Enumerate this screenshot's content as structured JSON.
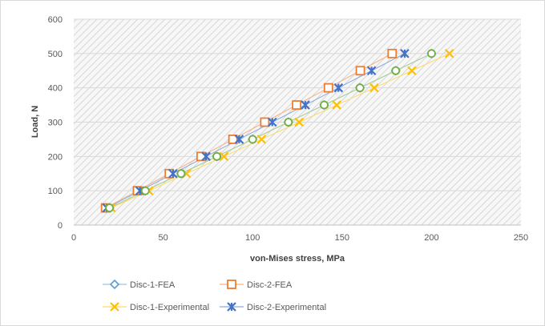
{
  "chart_data": {
    "type": "scatter",
    "title": "",
    "xlabel": "von-Mises stress, MPa",
    "ylabel": "Load, N",
    "xlim": [
      0,
      250
    ],
    "ylim": [
      0,
      600
    ],
    "x_ticks": [
      "0",
      "50",
      "100",
      "150",
      "200",
      "250"
    ],
    "y_ticks": [
      "0",
      "100",
      "200",
      "300",
      "400",
      "500",
      "600"
    ],
    "grid": "hatched plot area",
    "legend_position": "bottom",
    "series": [
      {
        "name": "Disc-1-FEA",
        "marker": "diamond",
        "color": "#5b9bd5",
        "line_color": "#9dc3e6",
        "points": [
          [
            20,
            50
          ],
          [
            40,
            100
          ],
          [
            60,
            150
          ],
          [
            80,
            200
          ],
          [
            100,
            250
          ],
          [
            120,
            300
          ],
          [
            140,
            350
          ],
          [
            160,
            400
          ],
          [
            180,
            450
          ],
          [
            200,
            500
          ]
        ]
      },
      {
        "name": "Disc-2-FEA",
        "marker": "square",
        "color": "#ed7d31",
        "line_color": "#f4b183",
        "points": [
          [
            17.8,
            50
          ],
          [
            35.6,
            100
          ],
          [
            53.4,
            150
          ],
          [
            71.2,
            200
          ],
          [
            89,
            250
          ],
          [
            106.8,
            300
          ],
          [
            124.6,
            350
          ],
          [
            142.4,
            400
          ],
          [
            160.2,
            450
          ],
          [
            178,
            500
          ]
        ]
      },
      {
        "name": "Disc-1-Experimental",
        "marker": "x",
        "color": "#ffc000",
        "line_color": "#ffd966",
        "points": [
          [
            21,
            50
          ],
          [
            42,
            100
          ],
          [
            63,
            150
          ],
          [
            84,
            200
          ],
          [
            105,
            250
          ],
          [
            126,
            300
          ],
          [
            147,
            350
          ],
          [
            168,
            400
          ],
          [
            189,
            450
          ],
          [
            210,
            500
          ]
        ]
      },
      {
        "name": "Disc-2-Experimental",
        "marker": "star-x",
        "color": "#4472c4",
        "line_color": "#8faadc",
        "points": [
          [
            18.5,
            50
          ],
          [
            37,
            100
          ],
          [
            55.5,
            150
          ],
          [
            74,
            200
          ],
          [
            92.5,
            250
          ],
          [
            111,
            300
          ],
          [
            129.5,
            350
          ],
          [
            148,
            400
          ],
          [
            166.5,
            450
          ],
          [
            185,
            500
          ]
        ]
      },
      {
        "name": "",
        "marker": "circle",
        "color": "#70ad47",
        "line_color": "#a9d18e",
        "points": [
          [
            20,
            50
          ],
          [
            40,
            100
          ],
          [
            60,
            150
          ],
          [
            80,
            200
          ],
          [
            100,
            250
          ],
          [
            120,
            300
          ],
          [
            140,
            350
          ],
          [
            160,
            400
          ],
          [
            180,
            450
          ],
          [
            200,
            500
          ]
        ]
      }
    ]
  }
}
